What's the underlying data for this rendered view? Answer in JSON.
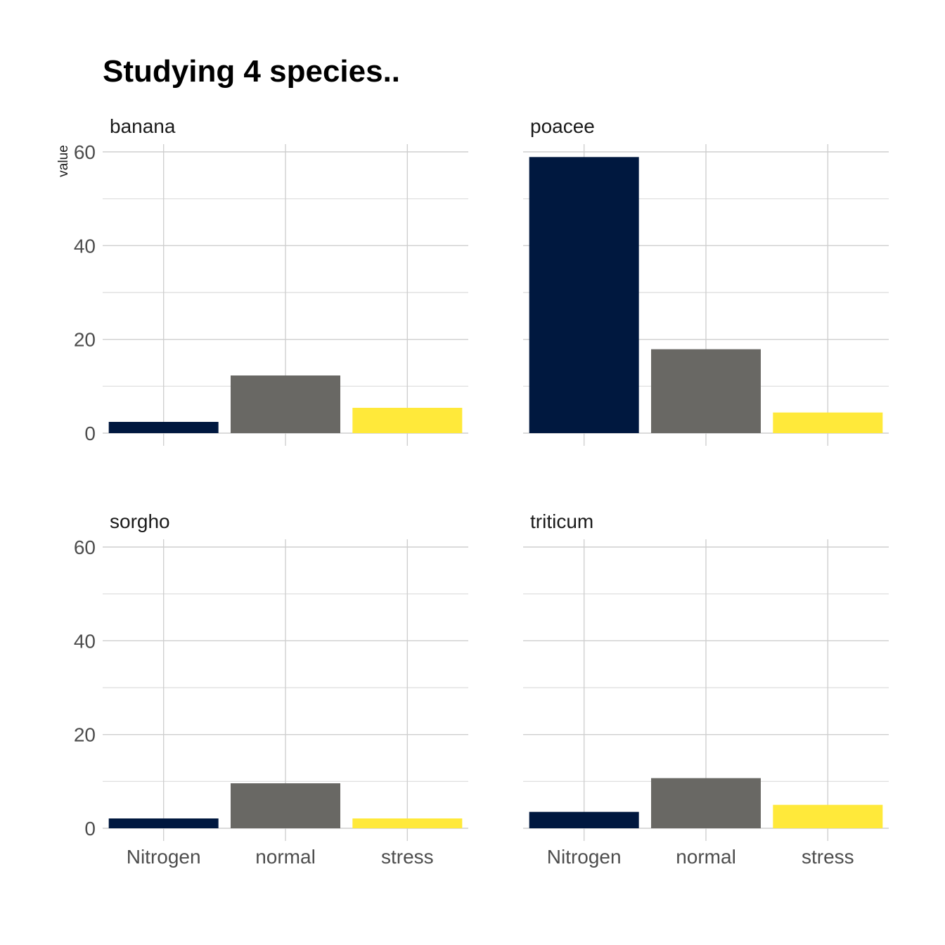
{
  "chart_data": {
    "type": "bar",
    "title": "Studying 4 species..",
    "ylabel": "value",
    "xlabel": "",
    "categories": [
      "Nitrogen",
      "normal",
      "stress"
    ],
    "category_colors": [
      "#00183f",
      "#696864",
      "#ffe93a"
    ],
    "ylim": [
      0,
      60
    ],
    "yticks": [
      0,
      20,
      40,
      60
    ],
    "grid": true,
    "legend": "none",
    "facets": [
      {
        "name": "banana",
        "values": [
          2.4,
          12.3,
          5.4
        ]
      },
      {
        "name": "poacee",
        "values": [
          58.9,
          17.9,
          4.4
        ]
      },
      {
        "name": "sorgho",
        "values": [
          2.1,
          9.6,
          2.1
        ]
      },
      {
        "name": "triticum",
        "values": [
          3.5,
          10.7,
          5.0
        ]
      }
    ]
  }
}
